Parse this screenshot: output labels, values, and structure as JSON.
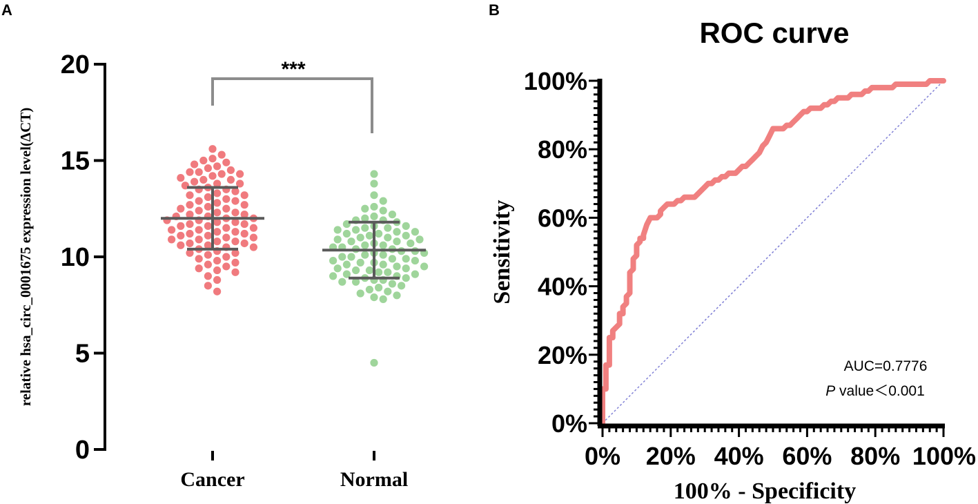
{
  "chart_data": [
    {
      "type": "scatter",
      "panel_label": "A",
      "title": "",
      "ylabel": "relative hsa_circ_0001675 expression level(ΔCT)",
      "xlabel": "",
      "categories": [
        "Cancer",
        "Normal"
      ],
      "ylim": [
        0,
        20
      ],
      "yticks": [
        0,
        5,
        10,
        15,
        20
      ],
      "colors": {
        "Cancer": "#f07a7e",
        "Normal": "#9fd59b",
        "bars": "#5a5a5a",
        "bracket": "#8c8c8c"
      },
      "significance": "***",
      "groups": [
        {
          "name": "Cancer",
          "mean": 12.0,
          "sd_upper": 13.6,
          "sd_lower": 10.4,
          "values": [
            15.6,
            15.3,
            15.0,
            15.1,
            14.8,
            14.9,
            14.7,
            14.5,
            14.4,
            14.6,
            14.3,
            14.2,
            14.4,
            14.1,
            14.3,
            14.0,
            13.9,
            13.8,
            14.0,
            13.7,
            13.6,
            13.5,
            13.8,
            13.4,
            13.3,
            13.2,
            13.5,
            13.1,
            13.0,
            12.9,
            13.2,
            12.8,
            12.7,
            12.9,
            12.6,
            12.5,
            12.7,
            12.4,
            12.3,
            12.5,
            12.2,
            12.1,
            12.3,
            12.0,
            12.2,
            11.9,
            12.1,
            11.8,
            12.0,
            11.7,
            11.9,
            11.6,
            11.8,
            11.5,
            11.7,
            11.4,
            11.6,
            11.3,
            11.5,
            11.2,
            11.4,
            11.1,
            11.3,
            11.0,
            11.2,
            10.9,
            11.1,
            10.8,
            11.0,
            10.7,
            10.9,
            10.6,
            10.8,
            10.5,
            10.7,
            10.4,
            10.6,
            10.3,
            10.5,
            10.2,
            10.1,
            10.0,
            9.9,
            10.2,
            9.8,
            9.7,
            9.6,
            9.5,
            9.4,
            9.3,
            9.2,
            9.0,
            8.8,
            8.5,
            8.2
          ]
        },
        {
          "name": "Normal",
          "mean": 10.35,
          "sd_upper": 11.8,
          "sd_lower": 8.9,
          "values": [
            14.3,
            13.8,
            13.2,
            12.9,
            12.6,
            12.4,
            12.5,
            12.2,
            12.0,
            12.1,
            11.9,
            11.8,
            11.7,
            11.9,
            11.6,
            11.5,
            11.4,
            11.6,
            11.3,
            11.5,
            11.2,
            11.4,
            11.1,
            11.3,
            11.0,
            11.2,
            10.9,
            11.1,
            10.8,
            11.0,
            10.7,
            10.9,
            10.6,
            10.8,
            10.5,
            10.7,
            10.4,
            10.6,
            10.3,
            10.5,
            10.2,
            10.4,
            10.1,
            10.3,
            10.0,
            10.2,
            9.9,
            10.1,
            9.8,
            10.0,
            9.7,
            9.9,
            9.6,
            9.8,
            9.5,
            9.7,
            9.4,
            9.6,
            9.3,
            9.5,
            9.2,
            9.4,
            9.1,
            9.3,
            9.0,
            9.2,
            8.9,
            9.1,
            8.8,
            9.0,
            8.7,
            8.9,
            8.6,
            8.8,
            8.5,
            8.7,
            8.4,
            8.3,
            8.2,
            8.1,
            8.0,
            7.9,
            7.8,
            4.5
          ]
        }
      ]
    },
    {
      "type": "line",
      "panel_label": "B",
      "title": "ROC curve",
      "xlabel": "100% - Specificity",
      "ylabel": "Sensitivity",
      "xlim": [
        0,
        100
      ],
      "ylim": [
        0,
        100
      ],
      "xticks": [
        "0%",
        "20%",
        "40%",
        "60%",
        "80%",
        "100%"
      ],
      "yticks": [
        "0%",
        "20%",
        "40%",
        "60%",
        "80%",
        "100%"
      ],
      "colors": {
        "curve": "#f08080",
        "reference": "#7f7fd5"
      },
      "annotations": {
        "auc": "AUC=0.7776",
        "p_italic": "P",
        "p_rest": " value＜0.001"
      },
      "series": [
        {
          "name": "ROC",
          "x": [
            0,
            0,
            1,
            1,
            2,
            2,
            3,
            3,
            4,
            5,
            5,
            6,
            6,
            7,
            7,
            8,
            8,
            9,
            9,
            10,
            10,
            11,
            11,
            12,
            12,
            13,
            14,
            14,
            15,
            16,
            17,
            17,
            18,
            19,
            20,
            21,
            22,
            23,
            24,
            25,
            26,
            27,
            28,
            29,
            30,
            31,
            32,
            33,
            34,
            35,
            36,
            37,
            38,
            39,
            40,
            41,
            42,
            43,
            44,
            45,
            46,
            47,
            48,
            49,
            50,
            51,
            52,
            53,
            54,
            55,
            56,
            57,
            58,
            59,
            60,
            61,
            62,
            63,
            64,
            65,
            66,
            67,
            68,
            69,
            70,
            71,
            72,
            73,
            74,
            75,
            76,
            77,
            78,
            79,
            80,
            81,
            82,
            83,
            84,
            85,
            86,
            87,
            88,
            89,
            90,
            91,
            92,
            93,
            94,
            95,
            96,
            97,
            98,
            99,
            100
          ],
          "y": [
            0,
            10,
            10,
            17,
            17,
            25,
            25,
            27,
            28,
            29,
            32,
            32,
            34,
            35,
            37,
            38,
            44,
            45,
            48,
            49,
            52,
            53,
            54,
            54,
            55,
            58,
            60,
            60,
            60,
            60,
            61,
            62,
            63,
            64,
            64,
            64,
            65,
            65,
            66,
            66,
            66,
            66,
            67,
            68,
            69,
            70,
            70,
            71,
            71,
            72,
            72,
            73,
            73,
            73,
            74,
            75,
            75,
            76,
            77,
            78,
            79,
            81,
            82,
            84,
            86,
            86,
            86,
            86,
            87,
            87,
            88,
            89,
            90,
            91,
            91,
            92,
            92,
            92,
            92,
            93,
            93,
            94,
            94,
            95,
            95,
            95,
            95,
            96,
            96,
            96,
            96,
            97,
            97,
            98,
            98,
            98,
            98,
            98,
            98,
            98,
            99,
            99,
            99,
            99,
            99,
            99,
            99,
            99,
            99,
            99,
            100,
            100,
            100,
            100,
            100
          ]
        },
        {
          "name": "Reference",
          "x": [
            0,
            100
          ],
          "y": [
            0,
            100
          ]
        }
      ]
    }
  ]
}
